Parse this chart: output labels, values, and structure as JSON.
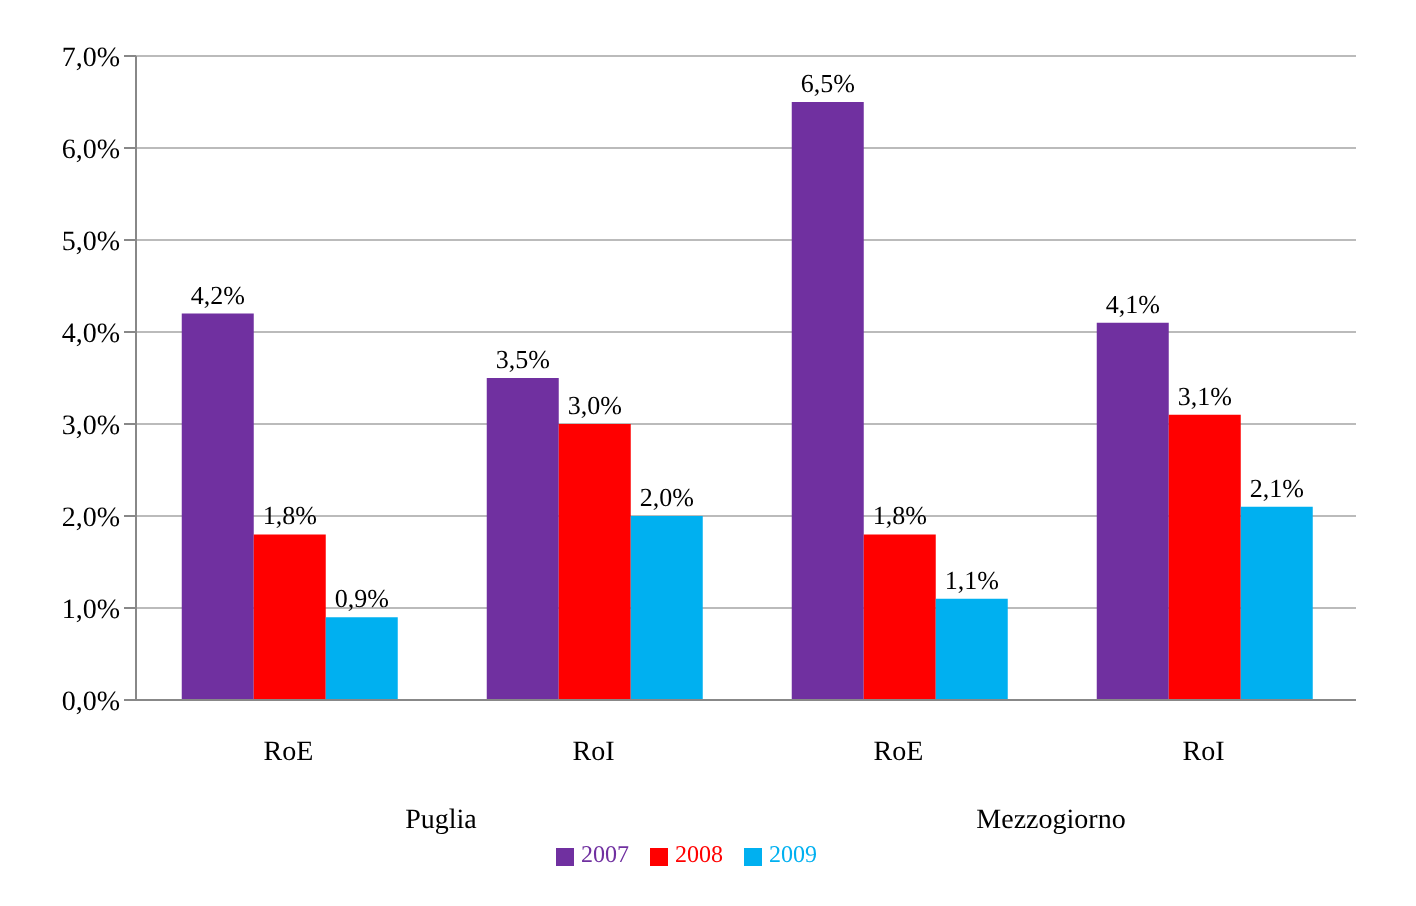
{
  "chart_data": {
    "type": "bar",
    "categories": [
      "RoE",
      "RoI",
      "RoE",
      "RoI"
    ],
    "series": [
      {
        "name": "2007",
        "color": "#7030a0",
        "values": [
          4.2,
          3.5,
          6.5,
          4.1
        ],
        "value_labels": [
          "4,2%",
          "3,5%",
          "6,5%",
          "4,1%"
        ]
      },
      {
        "name": "2008",
        "color": "#ff0000",
        "values": [
          1.8,
          3.0,
          1.8,
          3.1
        ],
        "value_labels": [
          "1,8%",
          "3,0%",
          "1,8%",
          "3,1%"
        ]
      },
      {
        "name": "2009",
        "color": "#00b0f0",
        "values": [
          0.9,
          2.0,
          1.1,
          2.1
        ],
        "value_labels": [
          "0,9%",
          "2,0%",
          "1,1%",
          "2,1%"
        ]
      }
    ],
    "annotations": [
      "Puglia",
      "Mezzogiorno"
    ],
    "ylim": [
      0,
      7
    ],
    "yticks": [
      {
        "value": 0,
        "label": "0,0%"
      },
      {
        "value": 1,
        "label": "1,0%"
      },
      {
        "value": 2,
        "label": "2,0%"
      },
      {
        "value": 3,
        "label": "3,0%"
      },
      {
        "value": 4,
        "label": "4,0%"
      },
      {
        "value": 5,
        "label": "5,0%"
      },
      {
        "value": 6,
        "label": "6,0%"
      },
      {
        "value": 7,
        "label": "7,0%"
      }
    ],
    "grid": "y",
    "legend": "bottom"
  }
}
